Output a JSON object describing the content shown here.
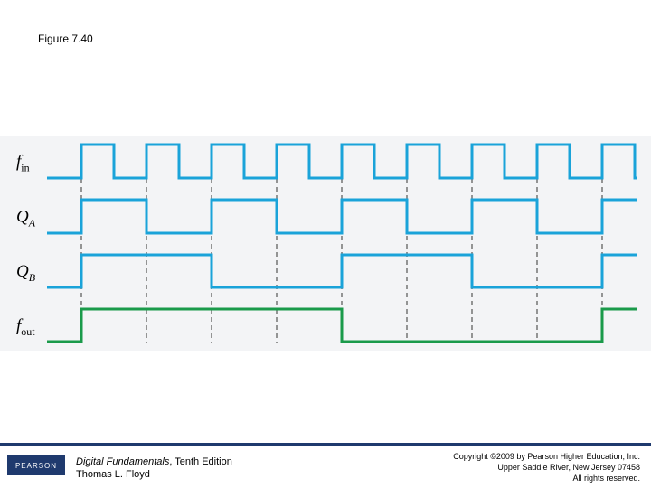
{
  "figure_title": "Figure 7.40",
  "signals": [
    {
      "name": "f",
      "sub": "in",
      "color": "#1aa3d9",
      "transitions": [
        0,
        90,
        126,
        162,
        198,
        234,
        270,
        306,
        342,
        378,
        414,
        450,
        486,
        522,
        558,
        594,
        630,
        666,
        702
      ],
      "start": 0
    },
    {
      "name": "Q",
      "sub": "A",
      "color": "#1aa3d9",
      "transitions": [
        0,
        90,
        162,
        234,
        306,
        378,
        450,
        522,
        594,
        666
      ],
      "start": 0
    },
    {
      "name": "Q",
      "sub": "B",
      "color": "#1aa3d9",
      "transitions": [
        0,
        90,
        234,
        378,
        522,
        666
      ],
      "start": 0
    },
    {
      "name": "f",
      "sub": "out",
      "color": "#1a9a4a",
      "transitions": [
        0,
        90,
        378,
        666
      ],
      "start": 0
    }
  ],
  "dashed_positions": [
    90,
    162,
    234,
    306,
    378,
    450,
    522,
    594,
    666
  ],
  "footer": {
    "logo": "PEARSON",
    "book_title": "Digital Fundamentals",
    "book_edition": ", Tenth Edition",
    "author": "Thomas L. Floyd",
    "copyright_1": "Copyright ©2009 by Pearson Higher Education, Inc.",
    "copyright_2": "Upper Saddle River, New Jersey 07458",
    "copyright_3": "All rights reserved."
  }
}
